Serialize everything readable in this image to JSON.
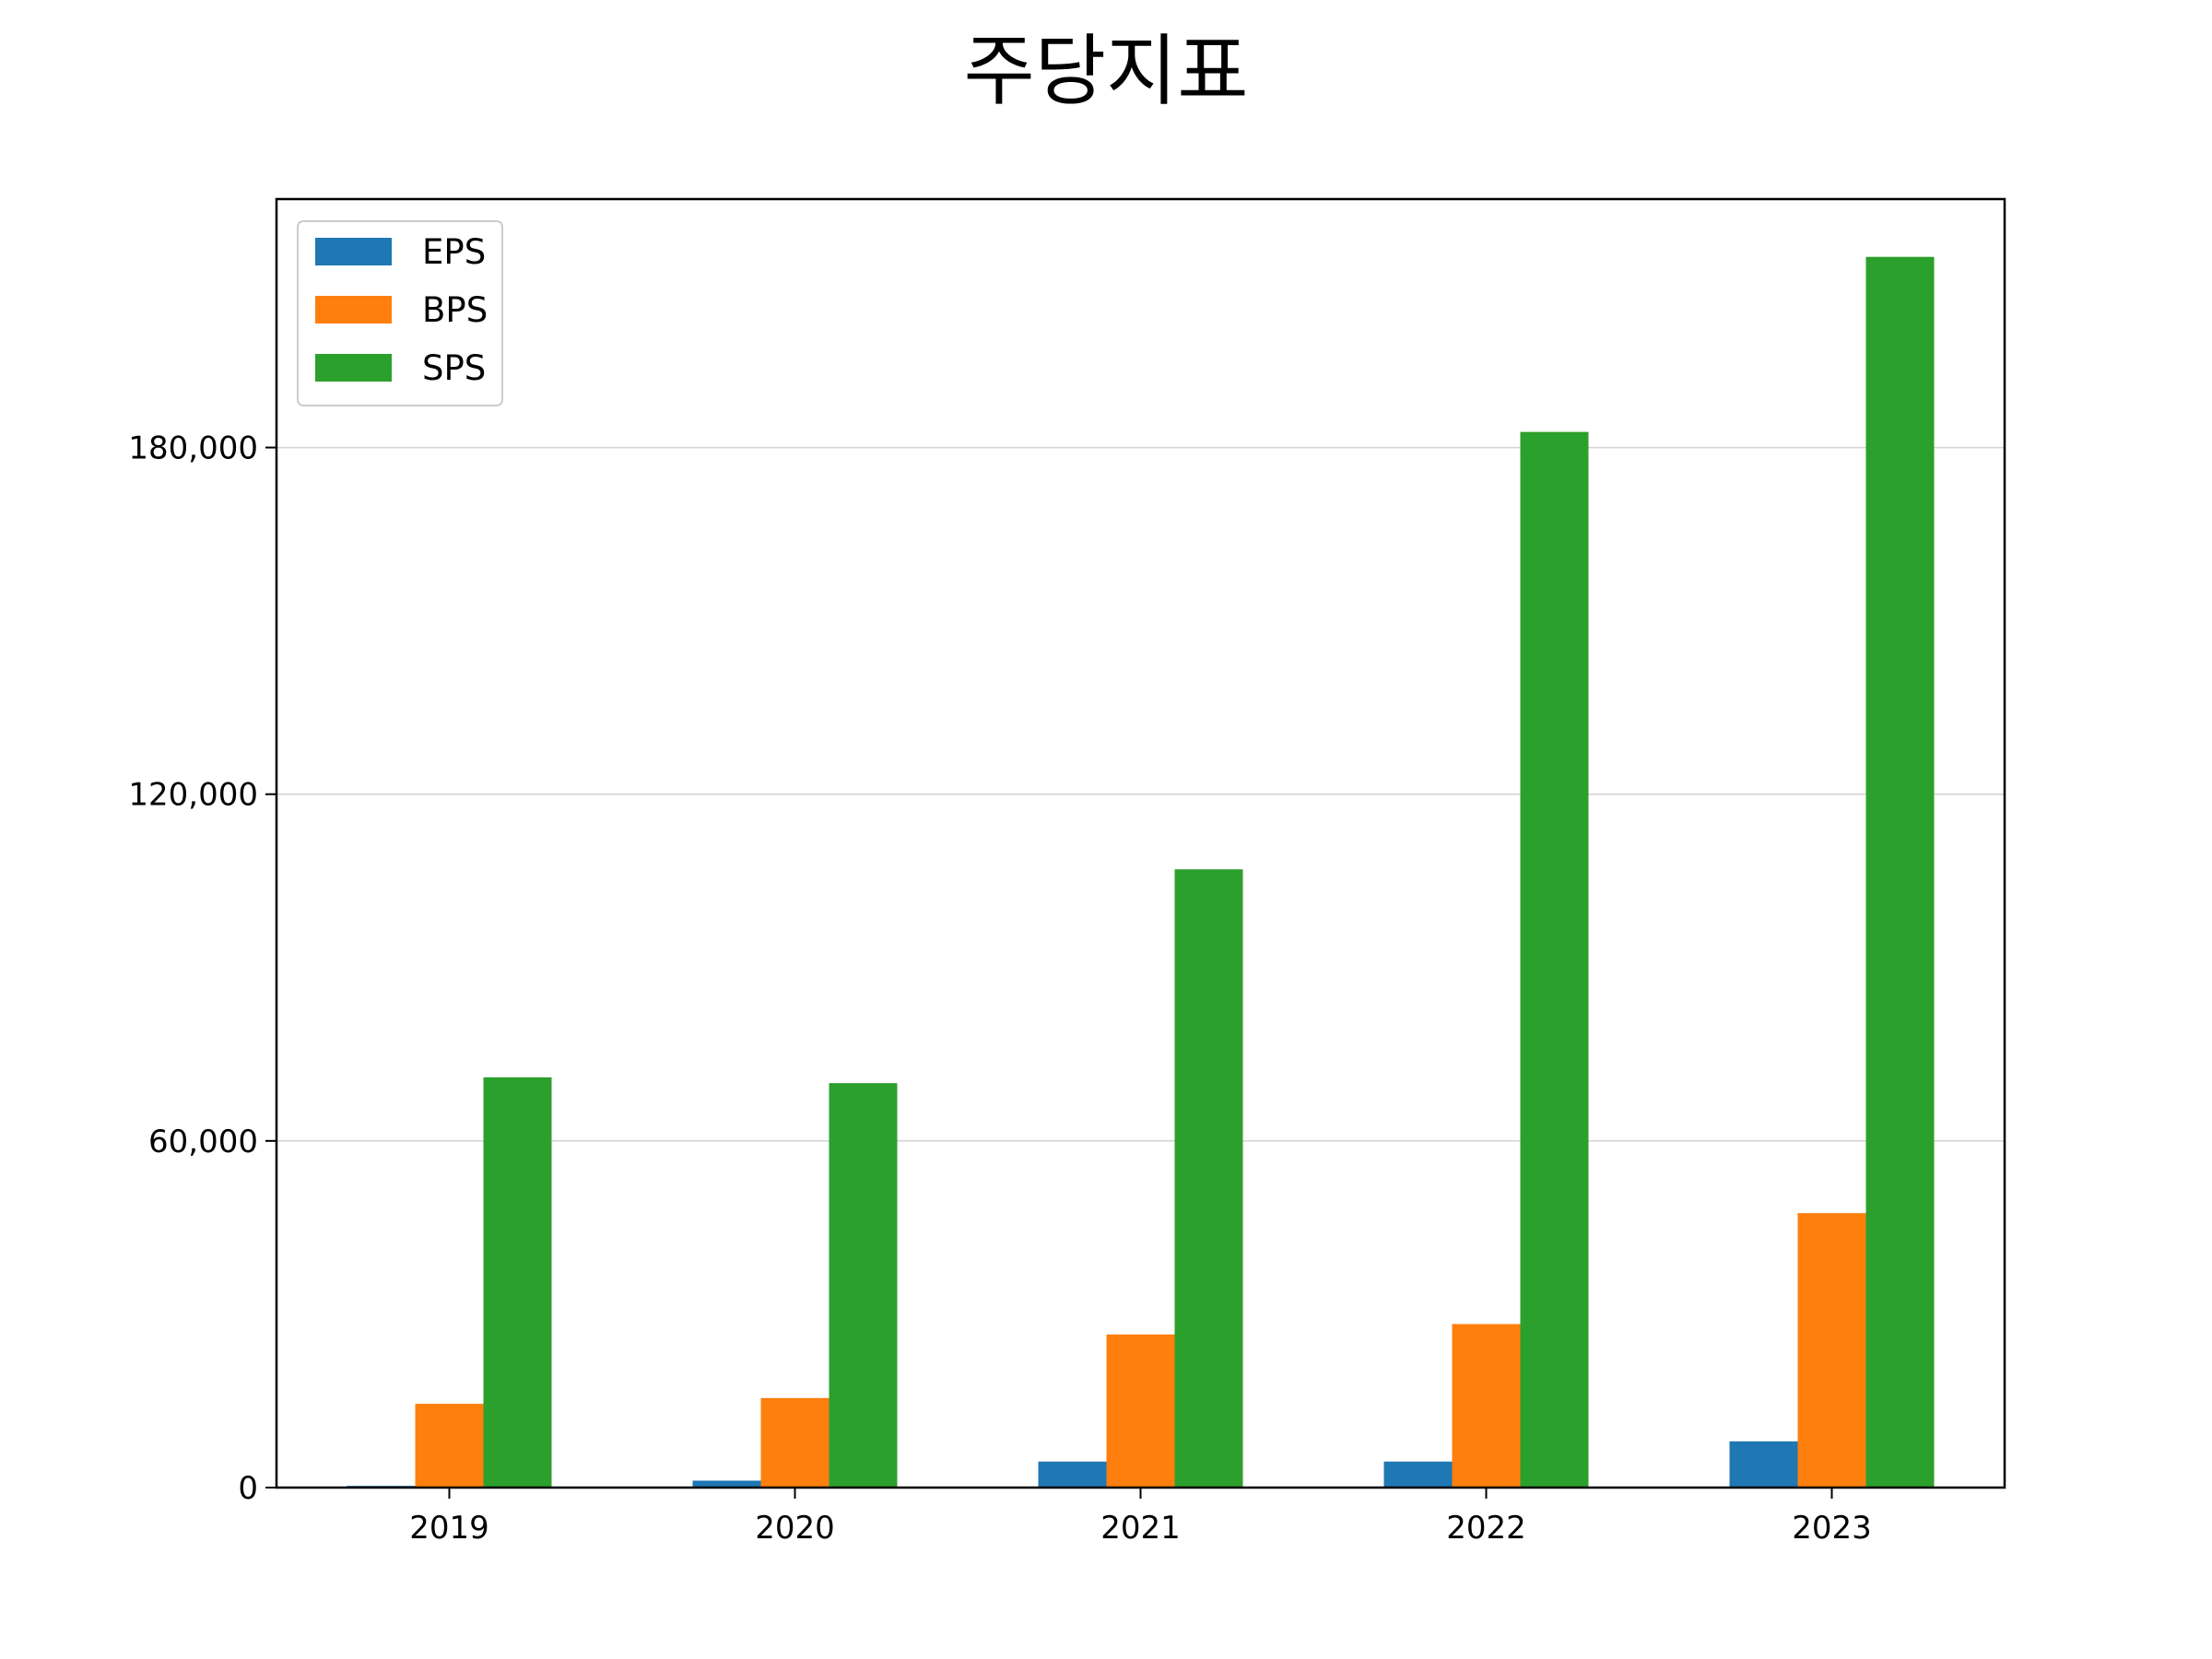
{
  "chart_data": {
    "type": "bar",
    "title": "주당지표",
    "xlabel": "",
    "ylabel": "",
    "categories": [
      "2019",
      "2020",
      "2021",
      "2022",
      "2023"
    ],
    "series": [
      {
        "name": "EPS",
        "color": "#1f77b4",
        "values": [
          300,
          1200,
          4500,
          4500,
          8000
        ]
      },
      {
        "name": "BPS",
        "color": "#ff7f0e",
        "values": [
          14500,
          15500,
          26500,
          28300,
          47500
        ]
      },
      {
        "name": "SPS",
        "color": "#2ca02c",
        "values": [
          71000,
          70000,
          107000,
          182700,
          213000
        ]
      }
    ],
    "ylim": [
      0,
      223000
    ],
    "yticks": [
      0,
      60000,
      120000,
      180000
    ],
    "ytick_labels": [
      "0",
      "60,000",
      "120,000",
      "180,000"
    ],
    "grid": "y",
    "legend": "top-left"
  }
}
